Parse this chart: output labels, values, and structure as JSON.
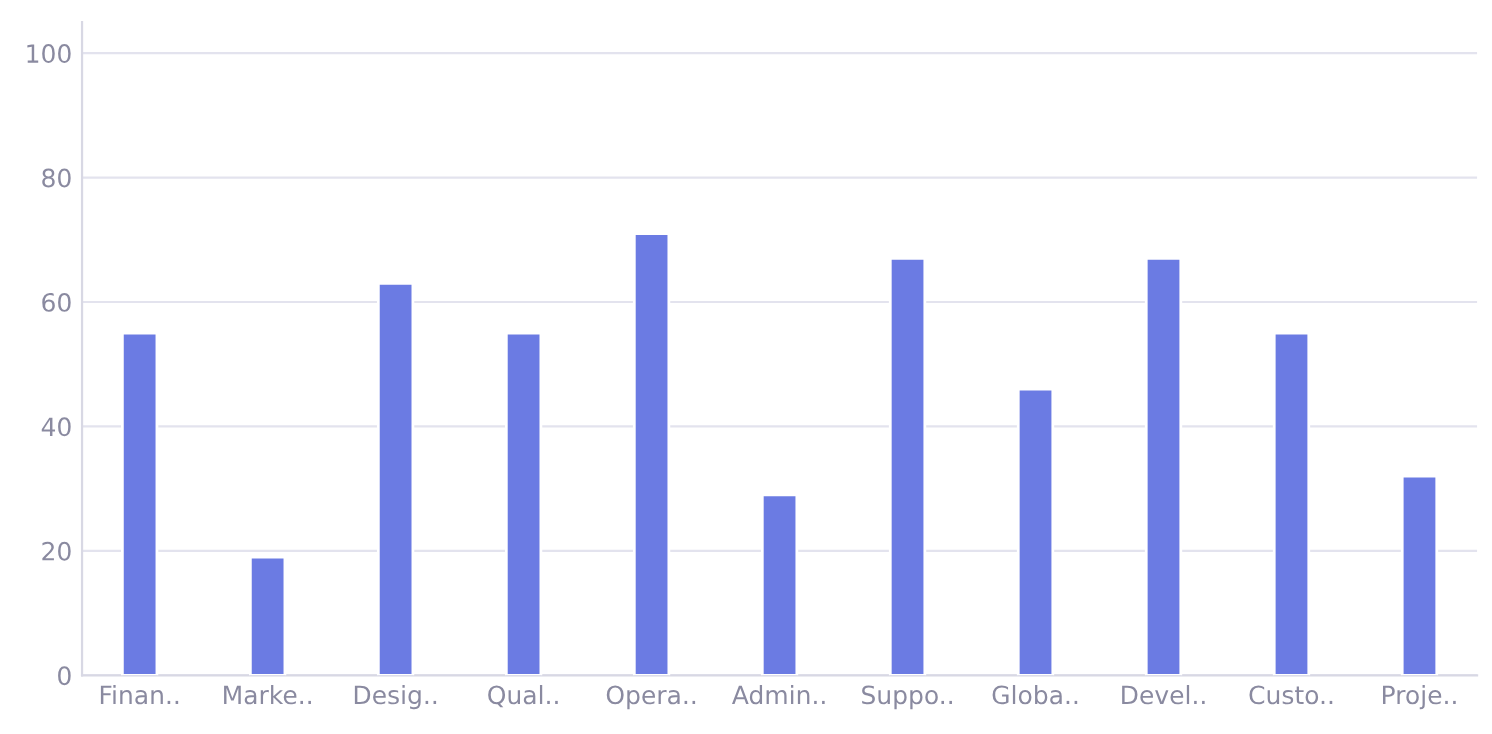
{
  "chart_data": {
    "type": "bar",
    "categories": [
      "Finan..",
      "Marke..",
      "Desig..",
      "Qual..",
      "Opera..",
      "Admin..",
      "Suppo..",
      "Globa..",
      "Devel..",
      "Custo..",
      "Proje.."
    ],
    "values": [
      55,
      19,
      63,
      55,
      71,
      29,
      67,
      46,
      67,
      55,
      32
    ],
    "color": "#6b7be3",
    "ylim": [
      0,
      105
    ],
    "yticks": [
      0,
      20,
      40,
      60,
      80,
      100
    ],
    "grid": "y"
  }
}
